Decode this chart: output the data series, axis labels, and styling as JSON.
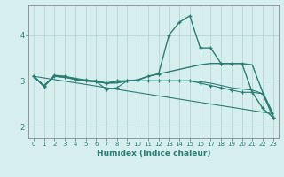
{
  "xlabel": "Humidex (Indice chaleur)",
  "background_color": "#d7eeee",
  "grid_color": "#aed0ce",
  "line_color": "#2a7d72",
  "xlim": [
    -0.5,
    23.5
  ],
  "ylim": [
    1.75,
    4.65
  ],
  "yticks": [
    2,
    3,
    4
  ],
  "xticks": [
    0,
    1,
    2,
    3,
    4,
    5,
    6,
    7,
    8,
    9,
    10,
    11,
    12,
    13,
    14,
    15,
    16,
    17,
    18,
    19,
    20,
    21,
    22,
    23
  ],
  "lines": [
    {
      "x": [
        0,
        1,
        2,
        3,
        4,
        5,
        6,
        7,
        8,
        9,
        10,
        11,
        12,
        13,
        14,
        15,
        16,
        17,
        18,
        19,
        20,
        21,
        22,
        23
      ],
      "y": [
        3.1,
        2.88,
        3.12,
        3.1,
        3.05,
        3.02,
        3.0,
        2.95,
        3.0,
        3.0,
        3.02,
        3.1,
        3.15,
        4.0,
        4.28,
        4.42,
        3.72,
        3.72,
        3.38,
        3.38,
        3.38,
        2.75,
        2.4,
        2.2
      ],
      "marker": "+",
      "lw": 1.0,
      "ms": 3.5
    },
    {
      "x": [
        0,
        1,
        2,
        3,
        4,
        5,
        6,
        7,
        8,
        9,
        10,
        11,
        12,
        13,
        14,
        15,
        16,
        17,
        18,
        19,
        20,
        21,
        22,
        23
      ],
      "y": [
        3.1,
        2.88,
        3.1,
        3.08,
        3.05,
        3.0,
        2.98,
        2.95,
        2.97,
        3.0,
        3.02,
        3.1,
        3.15,
        3.2,
        3.25,
        3.3,
        3.35,
        3.38,
        3.38,
        3.38,
        3.38,
        3.35,
        2.75,
        2.28
      ],
      "marker": null,
      "lw": 1.0,
      "ms": 0
    },
    {
      "x": [
        0,
        1,
        2,
        3,
        4,
        5,
        6,
        7,
        8,
        9,
        10,
        11,
        12,
        13,
        14,
        15,
        16,
        17,
        18,
        19,
        20,
        21,
        22,
        23
      ],
      "y": [
        3.1,
        2.9,
        3.1,
        3.08,
        3.03,
        3.0,
        2.98,
        2.82,
        2.85,
        3.0,
        3.0,
        3.0,
        3.0,
        3.0,
        3.0,
        3.0,
        2.95,
        2.9,
        2.85,
        2.8,
        2.75,
        2.75,
        2.72,
        2.2
      ],
      "marker": "+",
      "lw": 0.8,
      "ms": 3.5
    },
    {
      "x": [
        0,
        1,
        2,
        3,
        4,
        5,
        6,
        7,
        8,
        9,
        10,
        11,
        12,
        13,
        14,
        15,
        16,
        17,
        18,
        19,
        20,
        21,
        22,
        23
      ],
      "y": [
        3.1,
        2.9,
        3.1,
        3.08,
        3.03,
        3.0,
        2.98,
        2.95,
        2.95,
        3.0,
        3.0,
        3.0,
        3.0,
        3.0,
        3.0,
        3.0,
        2.98,
        2.95,
        2.9,
        2.85,
        2.82,
        2.8,
        2.72,
        2.25
      ],
      "marker": null,
      "lw": 0.8,
      "ms": 0
    },
    {
      "x": [
        0,
        23
      ],
      "y": [
        3.1,
        2.28
      ],
      "marker": null,
      "lw": 0.8,
      "ms": 0
    }
  ]
}
